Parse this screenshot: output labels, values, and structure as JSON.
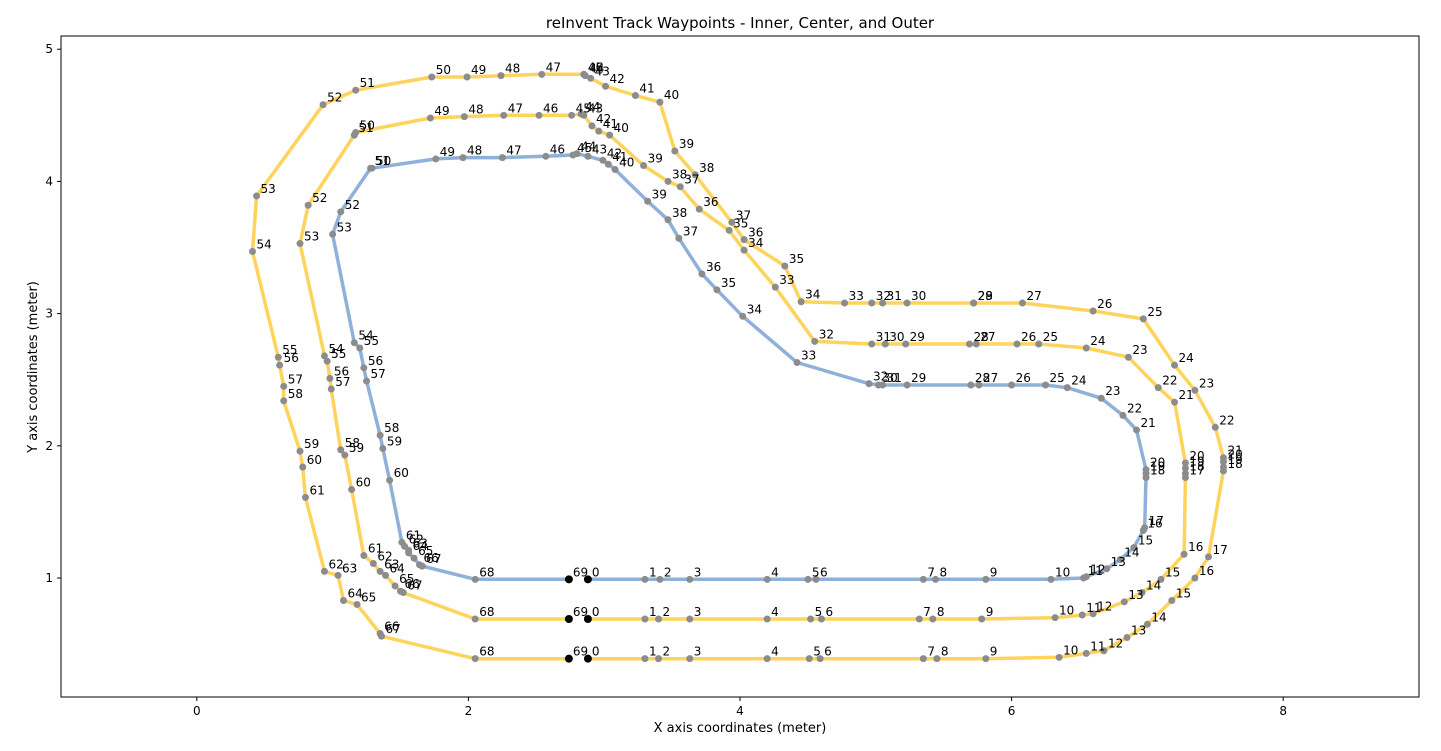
{
  "chart_data": {
    "type": "line",
    "title": "reInvent Track Waypoints - Inner, Center, and Outer",
    "xlabel": "X axis coordinates (meter)",
    "ylabel": "Y axis coordinates (meter)",
    "xlim": [
      -1.0,
      9.0
    ],
    "ylim": [
      0.1,
      5.1
    ],
    "xticks": [
      0,
      2,
      4,
      6,
      8
    ],
    "yticks": [
      1,
      2,
      3,
      4,
      5
    ],
    "grid": false,
    "colors": {
      "center": "#8fb1d9",
      "track": "#ffd35c",
      "point": "#8c8c8c",
      "start": "#000000"
    },
    "series": [
      {
        "x": [
          2.88,
          3.3,
          3.41,
          3.63,
          4.2,
          4.5,
          4.56,
          5.35,
          5.44,
          5.81,
          6.29,
          6.53,
          6.55,
          6.7,
          6.8,
          6.9,
          6.97,
          6.98,
          6.99,
          6.99,
          6.99,
          6.92,
          6.82,
          6.66,
          6.41,
          6.25,
          6.0,
          5.76,
          5.7,
          5.23,
          5.02,
          5.05,
          4.95,
          4.42,
          4.02,
          3.83,
          3.72,
          3.55,
          3.47,
          3.32,
          3.08,
          3.03,
          2.99,
          2.88,
          2.8,
          2.77,
          2.57,
          2.25,
          1.96,
          1.76,
          1.29,
          1.28,
          1.06,
          1.0,
          1.16,
          1.2,
          1.23,
          1.25,
          1.35,
          1.37,
          1.42,
          1.51,
          1.53,
          1.56,
          1.56,
          1.6,
          1.64,
          1.66,
          2.05,
          2.74
        ],
        "y": [
          0.99,
          0.99,
          0.99,
          0.99,
          0.99,
          0.99,
          0.99,
          0.99,
          0.99,
          0.99,
          0.99,
          1.0,
          1.01,
          1.07,
          1.14,
          1.23,
          1.36,
          1.38,
          1.76,
          1.79,
          1.82,
          2.12,
          2.23,
          2.36,
          2.44,
          2.46,
          2.46,
          2.46,
          2.46,
          2.46,
          2.46,
          2.46,
          2.47,
          2.63,
          2.98,
          3.18,
          3.3,
          3.57,
          3.71,
          3.85,
          4.09,
          4.13,
          4.16,
          4.19,
          4.21,
          4.2,
          4.19,
          4.18,
          4.18,
          4.17,
          4.1,
          4.1,
          3.77,
          3.6,
          2.78,
          2.74,
          2.59,
          2.49,
          2.08,
          1.98,
          1.74,
          1.27,
          1.24,
          1.21,
          1.19,
          1.15,
          1.1,
          1.09,
          0.99,
          0.99
        ]
      },
      {
        "x": [
          2.88,
          3.3,
          3.4,
          3.63,
          4.2,
          4.52,
          4.6,
          5.32,
          5.42,
          5.78,
          6.32,
          6.52,
          6.6,
          6.83,
          6.96,
          7.1,
          7.27,
          7.28,
          7.28,
          7.28,
          7.28,
          7.2,
          7.08,
          6.86,
          6.55,
          6.2,
          6.04,
          5.74,
          5.69,
          5.22,
          5.07,
          4.97,
          4.55,
          4.26,
          4.03,
          3.92,
          3.7,
          3.56,
          3.47,
          3.29,
          3.04,
          2.96,
          2.91,
          2.85,
          2.83,
          2.76,
          2.52,
          2.26,
          1.97,
          1.72,
          1.17,
          1.16,
          0.82,
          0.76,
          0.94,
          0.96,
          0.98,
          0.99,
          1.06,
          1.09,
          1.14,
          1.23,
          1.3,
          1.35,
          1.39,
          1.46,
          1.5,
          1.52,
          2.05,
          2.74
        ],
        "y": [
          0.69,
          0.69,
          0.69,
          0.69,
          0.69,
          0.69,
          0.69,
          0.69,
          0.69,
          0.69,
          0.7,
          0.72,
          0.73,
          0.82,
          0.89,
          0.99,
          1.18,
          1.76,
          1.79,
          1.83,
          1.87,
          2.33,
          2.44,
          2.67,
          2.74,
          2.77,
          2.77,
          2.77,
          2.77,
          2.77,
          2.77,
          2.77,
          2.79,
          3.2,
          3.48,
          3.63,
          3.79,
          3.96,
          4.0,
          4.12,
          4.35,
          4.38,
          4.42,
          4.5,
          4.51,
          4.5,
          4.5,
          4.5,
          4.49,
          4.48,
          4.37,
          4.35,
          3.82,
          3.53,
          2.68,
          2.64,
          2.51,
          2.43,
          1.97,
          1.93,
          1.67,
          1.17,
          1.11,
          1.05,
          1.02,
          0.94,
          0.9,
          0.89,
          0.69,
          0.69
        ]
      },
      {
        "x": [
          2.88,
          3.3,
          3.4,
          3.63,
          4.2,
          4.51,
          4.59,
          5.35,
          5.45,
          5.81,
          6.35,
          6.55,
          6.68,
          6.85,
          7.0,
          7.18,
          7.35,
          7.45,
          7.56,
          7.56,
          7.56,
          7.56,
          7.5,
          7.35,
          7.2,
          6.97,
          6.6,
          6.08,
          5.72,
          5.72,
          5.23,
          5.05,
          4.97,
          4.77,
          4.45,
          4.33,
          4.03,
          3.94,
          3.67,
          3.52,
          3.41,
          3.23,
          3.01,
          2.9,
          2.86,
          2.85,
          2.85,
          2.54,
          2.24,
          1.99,
          1.73,
          1.17,
          0.93,
          0.44,
          0.41,
          0.6,
          0.61,
          0.64,
          0.64,
          0.76,
          0.78,
          0.8,
          0.94,
          1.04,
          1.08,
          1.18,
          1.35,
          1.36,
          2.05,
          2.74
        ],
        "y": [
          0.39,
          0.39,
          0.39,
          0.39,
          0.39,
          0.39,
          0.39,
          0.39,
          0.39,
          0.39,
          0.4,
          0.43,
          0.45,
          0.55,
          0.65,
          0.83,
          1.0,
          1.16,
          1.81,
          1.84,
          1.88,
          1.91,
          2.14,
          2.42,
          2.61,
          2.96,
          3.02,
          3.08,
          3.08,
          3.08,
          3.08,
          3.08,
          3.08,
          3.08,
          3.09,
          3.36,
          3.56,
          3.69,
          4.05,
          4.23,
          4.6,
          4.65,
          4.72,
          4.78,
          4.8,
          4.81,
          4.81,
          4.81,
          4.8,
          4.79,
          4.79,
          4.69,
          4.58,
          3.89,
          3.47,
          2.67,
          2.61,
          2.45,
          2.34,
          1.96,
          1.84,
          1.61,
          1.05,
          1.02,
          0.83,
          0.8,
          0.58,
          0.56,
          0.39,
          0.39
        ]
      }
    ]
  }
}
